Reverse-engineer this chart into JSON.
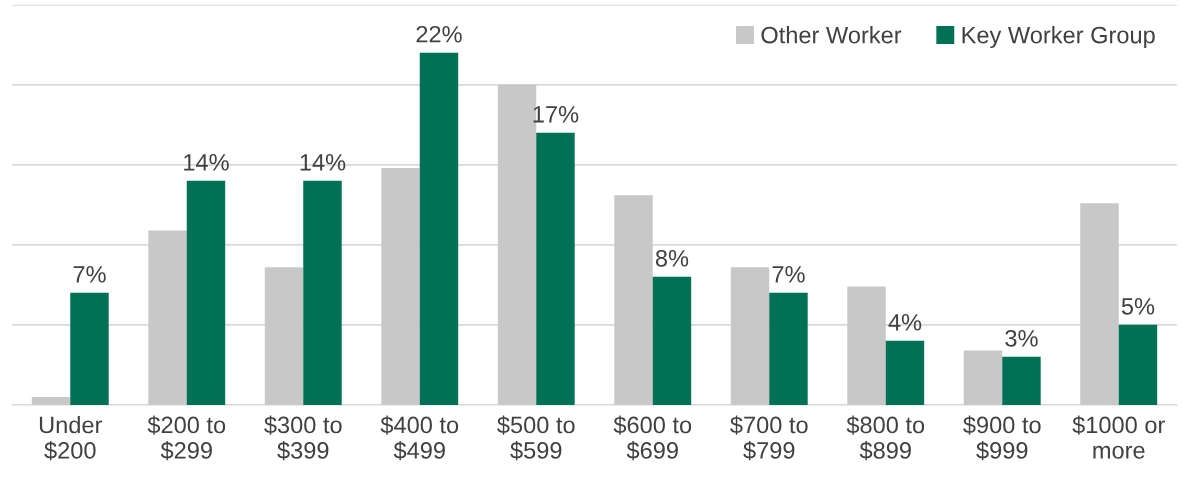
{
  "chart_data": {
    "type": "bar",
    "categories": [
      "Under\n$200",
      "$200 to\n$299",
      "$300 to\n$399",
      "$400 to\n$499",
      "$500 to\n$599",
      "$600 to\n$699",
      "$700 to\n$799",
      "$800 to\n$899",
      "$900 to\n$999",
      "$1000 or\nmore"
    ],
    "series": [
      {
        "name": "Other Worker",
        "color": "#c8c8c8",
        "values": [
          0.5,
          10.9,
          8.6,
          14.8,
          20.0,
          13.1,
          8.6,
          7.4,
          3.4,
          12.6
        ]
      },
      {
        "name": "Key Worker Group",
        "color": "#007157",
        "values": [
          7,
          14,
          14,
          22,
          17,
          8,
          7,
          4,
          3,
          5
        ],
        "value_labels": [
          "7%",
          "14%",
          "14%",
          "22%",
          "17%",
          "8%",
          "7%",
          "4%",
          "3%",
          "5%"
        ]
      }
    ],
    "ylim": [
      0,
      25
    ],
    "yticks": [
      {
        "value": 0,
        "label": null
      },
      {
        "value": 5,
        "label": null
      },
      {
        "value": 10,
        "label": null
      },
      {
        "value": 15,
        "label": null
      },
      {
        "value": 20,
        "label": null
      },
      {
        "value": 25,
        "label": null
      }
    ],
    "tick_labels": "x",
    "grid": "y",
    "legend": "top right"
  }
}
